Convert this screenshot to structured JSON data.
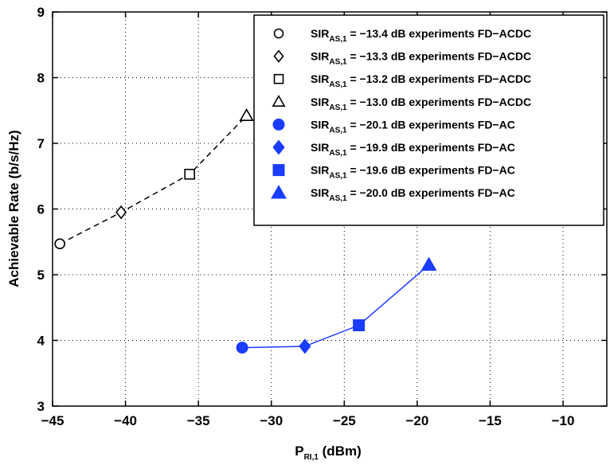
{
  "chart_data": {
    "type": "line",
    "xlabel": {
      "main": "P",
      "sub": "RI,1",
      "suffix": " (dBm)"
    },
    "ylabel": "Achievable Rate (b/s/Hz)",
    "xlim": [
      -45,
      -7
    ],
    "ylim": [
      3,
      9
    ],
    "xticks": [
      -45,
      -40,
      -35,
      -30,
      -25,
      -20,
      -15,
      -10
    ],
    "yticks": [
      3,
      4,
      5,
      6,
      7,
      8,
      9
    ],
    "xtick_labels": [
      "−45",
      "−40",
      "−35",
      "−30",
      "−25",
      "−20",
      "−15",
      "−10"
    ],
    "ytick_labels": [
      "3",
      "4",
      "5",
      "6",
      "7",
      "8",
      "9"
    ],
    "grid": true,
    "legend_position": "top-right",
    "lines": [
      {
        "id": "acdc-curve",
        "color": "#000000",
        "style": "dashed",
        "x": [
          -44.5,
          -40.3,
          -35.6,
          -31.7
        ],
        "y": [
          5.47,
          5.95,
          6.53,
          7.42
        ]
      },
      {
        "id": "ac-curve",
        "color": "#1a3cff",
        "style": "solid",
        "x": [
          -32.0,
          -27.7,
          -24.0,
          -19.2
        ],
        "y": [
          3.89,
          3.91,
          4.23,
          5.15
        ]
      }
    ],
    "series": [
      {
        "name_main": "SIR",
        "name_sub": "AS,1",
        "name_rest": " = −13.4 dB experiments FD−ACDC",
        "marker": "circle",
        "filled": false,
        "color": "#000000",
        "x": [
          -44.5
        ],
        "y": [
          5.47
        ]
      },
      {
        "name_main": "SIR",
        "name_sub": "AS,1",
        "name_rest": " = −13.3 dB experiments FD−ACDC",
        "marker": "diamond",
        "filled": false,
        "color": "#000000",
        "x": [
          -40.3
        ],
        "y": [
          5.95
        ]
      },
      {
        "name_main": "SIR",
        "name_sub": "AS,1",
        "name_rest": " = −13.2 dB experiments FD−ACDC",
        "marker": "square",
        "filled": false,
        "color": "#000000",
        "x": [
          -35.6
        ],
        "y": [
          6.53
        ]
      },
      {
        "name_main": "SIR",
        "name_sub": "AS,1",
        "name_rest": " = −13.0 dB experiments FD−ACDC",
        "marker": "triangle",
        "filled": false,
        "color": "#000000",
        "x": [
          -31.7
        ],
        "y": [
          7.42
        ]
      },
      {
        "name_main": "SIR",
        "name_sub": "AS,1",
        "name_rest": " = −20.1 dB experiments FD−AC",
        "marker": "circle",
        "filled": true,
        "color": "#1a3cff",
        "x": [
          -32.0
        ],
        "y": [
          3.89
        ]
      },
      {
        "name_main": "SIR",
        "name_sub": "AS,1",
        "name_rest": " = −19.9 dB experiments FD−AC",
        "marker": "diamond",
        "filled": true,
        "color": "#1a3cff",
        "x": [
          -27.7
        ],
        "y": [
          3.91
        ]
      },
      {
        "name_main": "SIR",
        "name_sub": "AS,1",
        "name_rest": " = −19.6 dB experiments FD−AC",
        "marker": "square",
        "filled": true,
        "color": "#1a3cff",
        "x": [
          -24.0
        ],
        "y": [
          4.23
        ]
      },
      {
        "name_main": "SIR",
        "name_sub": "AS,1",
        "name_rest": " = −20.0 dB experiments FD−AC",
        "marker": "triangle",
        "filled": true,
        "color": "#1a3cff",
        "x": [
          -19.2
        ],
        "y": [
          5.15
        ]
      }
    ]
  }
}
